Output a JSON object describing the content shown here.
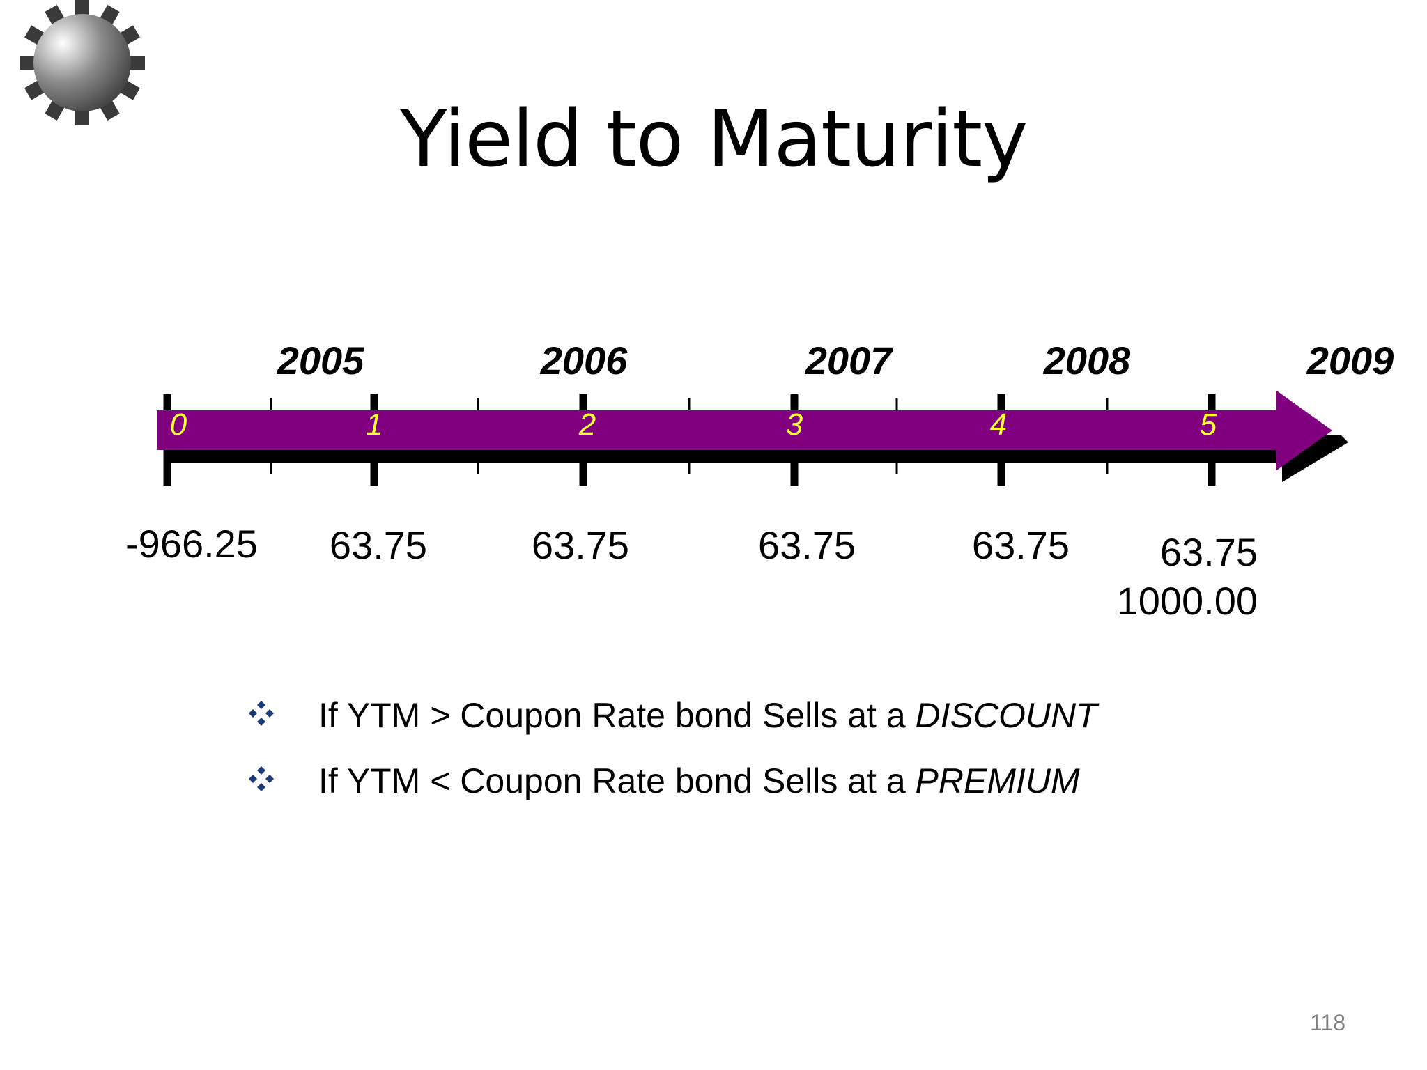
{
  "slide": {
    "title": "Yield to Maturity",
    "page_number": "118"
  },
  "timeline": {
    "years": [
      "2005",
      "2006",
      "2007",
      "2008",
      "2009"
    ],
    "periods": [
      "0",
      "1",
      "2",
      "3",
      "4",
      "5"
    ],
    "cash_flows": [
      "-966.25",
      "63.75",
      "63.75",
      "63.75",
      "63.75"
    ],
    "final_cash_flow": {
      "coupon": "63.75",
      "principal": "1000.00"
    },
    "colors": {
      "bar": "#800080",
      "period_label": "#ffff33",
      "shadow": "#000000"
    }
  },
  "bullets": [
    {
      "prefix": "If YTM > Coupon Rate bond Sells at a ",
      "emphasis": "DISCOUNT"
    },
    {
      "prefix": "If YTM < Coupon Rate bond Sells at a ",
      "emphasis": "PREMIUM"
    }
  ],
  "icons": {
    "logo": "gear-icon",
    "bullet": "diamond-bullet-icon"
  }
}
